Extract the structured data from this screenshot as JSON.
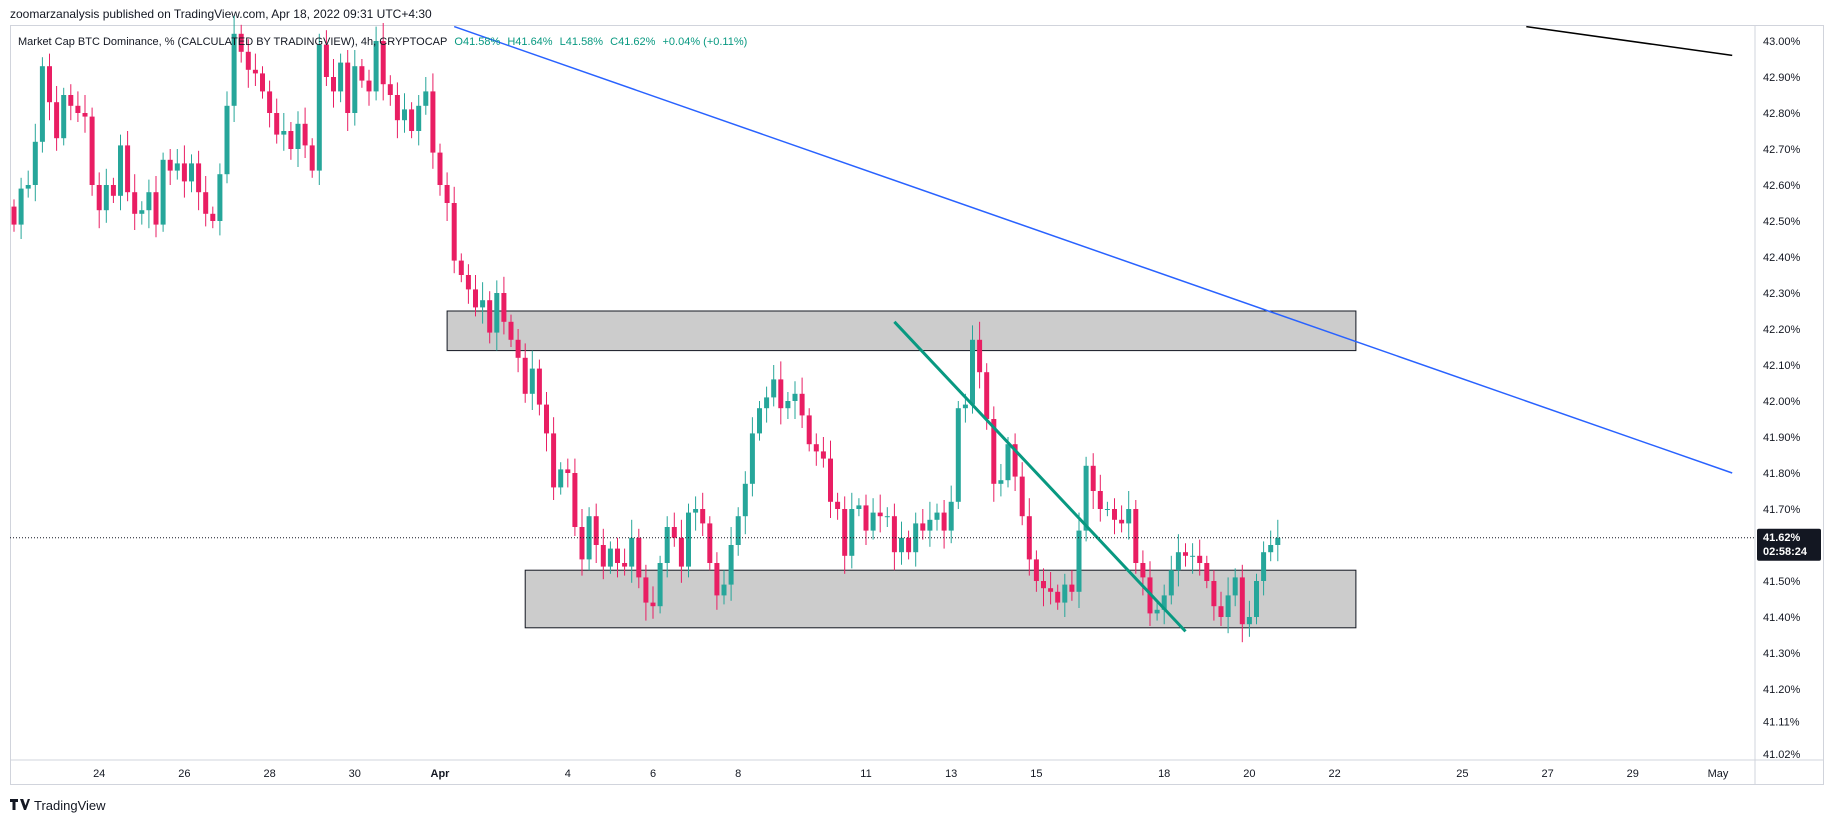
{
  "header": {
    "publisher": "zoomarzanalysis published on TradingView.com, Apr 18, 2022 09:31 UTC+4:30"
  },
  "legend": {
    "symbol": "Market Cap BTC Dominance, % (CALCULATED BY TRADINGVIEW), 4h, CRYPTOCAP",
    "open": "O41.58%",
    "high": "H41.64%",
    "low": "L41.58%",
    "close": "C41.62%",
    "change": "+0.04% (+0.11%)"
  },
  "price_tag": {
    "value": "41.62%",
    "countdown": "02:58:24"
  },
  "footer": {
    "brand": "TradingView",
    "logo_icon": "tradingview-logo-icon"
  },
  "colors": {
    "up": "#26a69a",
    "down": "#e91e63",
    "blue_trendline": "#2962ff",
    "green_trendline": "#089981",
    "black_trendline": "#000000",
    "zone_fill": "#cccccc",
    "price_tag": "#131722"
  },
  "chart_data": {
    "type": "candlestick",
    "title": "Market Cap BTC Dominance, % (CALCULATED BY TRADINGVIEW), 4h, CRYPTOCAP",
    "y_unit": "%",
    "ylim": [
      41.0,
      43.05
    ],
    "y_ticks": [
      "43.00%",
      "42.90%",
      "42.80%",
      "42.70%",
      "42.60%",
      "42.50%",
      "42.40%",
      "42.30%",
      "42.20%",
      "42.10%",
      "42.00%",
      "41.90%",
      "41.80%",
      "41.70%",
      "41.60%",
      "41.50%",
      "41.40%",
      "41.30%",
      "41.20%",
      "41.11%",
      "41.02%"
    ],
    "x_ticks": [
      {
        "label": "24",
        "bar": 12
      },
      {
        "label": "26",
        "bar": 24
      },
      {
        "label": "28",
        "bar": 36
      },
      {
        "label": "30",
        "bar": 48
      },
      {
        "label": "Apr",
        "bar": 60,
        "bold": true
      },
      {
        "label": "4",
        "bar": 78
      },
      {
        "label": "6",
        "bar": 90
      },
      {
        "label": "8",
        "bar": 102
      },
      {
        "label": "11",
        "bar": 120
      },
      {
        "label": "13",
        "bar": 132
      },
      {
        "label": "15",
        "bar": 144
      },
      {
        "label": "18",
        "bar": 162
      },
      {
        "label": "20",
        "bar": 174
      },
      {
        "label": "22",
        "bar": 186
      },
      {
        "label": "25",
        "bar": 204
      },
      {
        "label": "27",
        "bar": 216
      },
      {
        "label": "29",
        "bar": 228
      },
      {
        "label": "May",
        "bar": 240
      }
    ],
    "last_price": 41.62,
    "closes": [
      42.49,
      42.59,
      42.6,
      42.72,
      42.93,
      42.83,
      42.73,
      42.85,
      42.82,
      42.8,
      42.79,
      42.6,
      42.53,
      42.6,
      42.57,
      42.71,
      42.58,
      42.52,
      42.53,
      42.58,
      42.49,
      42.67,
      42.64,
      42.66,
      42.61,
      42.66,
      42.58,
      42.52,
      42.5,
      42.63,
      42.82,
      43.02,
      42.97,
      42.92,
      42.91,
      42.86,
      42.8,
      42.74,
      42.75,
      42.7,
      42.77,
      42.71,
      42.64,
      42.99,
      42.9,
      42.86,
      42.94,
      42.8,
      42.93,
      42.89,
      42.86,
      43.0,
      42.88,
      42.85,
      42.78,
      42.81,
      42.75,
      42.82,
      42.86,
      42.69,
      42.6,
      42.55,
      42.39,
      42.35,
      42.31,
      42.26,
      42.28,
      42.19,
      42.3,
      42.22,
      42.17,
      42.12,
      42.02,
      42.09,
      41.99,
      41.91,
      41.76,
      41.81,
      41.8,
      41.65,
      41.56,
      41.68,
      41.6,
      41.54,
      41.59,
      41.55,
      41.54,
      41.62,
      41.51,
      41.44,
      41.43,
      41.55,
      41.65,
      41.62,
      41.54,
      41.69,
      41.7,
      41.66,
      41.55,
      41.46,
      41.49,
      41.6,
      41.68,
      41.77,
      41.91,
      41.98,
      42.01,
      42.06,
      41.98,
      42.0,
      42.02,
      41.96,
      41.88,
      41.86,
      41.84,
      41.72,
      41.7,
      41.57,
      41.7,
      41.71,
      41.64,
      41.69,
      41.68,
      41.68,
      41.58,
      41.62,
      41.58,
      41.66,
      41.64,
      41.67,
      41.69,
      41.64,
      41.72,
      41.98,
      41.99,
      42.17,
      42.08,
      41.95,
      41.77,
      41.78,
      41.88,
      41.79,
      41.68,
      41.56,
      41.5,
      41.48,
      41.47,
      41.44,
      41.49,
      41.47,
      41.64,
      41.82,
      41.75,
      41.7,
      41.7,
      41.67,
      41.66,
      41.7,
      41.55,
      41.51,
      41.41,
      41.42,
      41.46,
      41.53,
      41.58,
      41.57,
      41.57,
      41.55,
      41.5,
      41.43,
      41.4,
      41.46,
      41.51,
      41.38,
      41.4,
      41.5,
      41.58,
      41.6,
      41.62
    ]
  },
  "zones": [
    {
      "name": "resistance-zone",
      "from_bar": 61,
      "to_bar": 189,
      "top": 42.25,
      "bottom": 42.14
    },
    {
      "name": "support-zone",
      "from_bar": 72,
      "to_bar": 189,
      "top": 41.53,
      "bottom": 41.37
    }
  ],
  "trendlines": [
    {
      "name": "blue-trendline",
      "color": "#2962ff",
      "points": [
        [
          62,
          43.04
        ],
        [
          242,
          41.8
        ]
      ]
    },
    {
      "name": "green-trendline",
      "color": "#089981",
      "points": [
        [
          124,
          42.22
        ],
        [
          165,
          41.36
        ]
      ]
    },
    {
      "name": "black-trendline",
      "color": "#000000",
      "points": [
        [
          213,
          43.04
        ],
        [
          242,
          42.96
        ]
      ]
    }
  ]
}
